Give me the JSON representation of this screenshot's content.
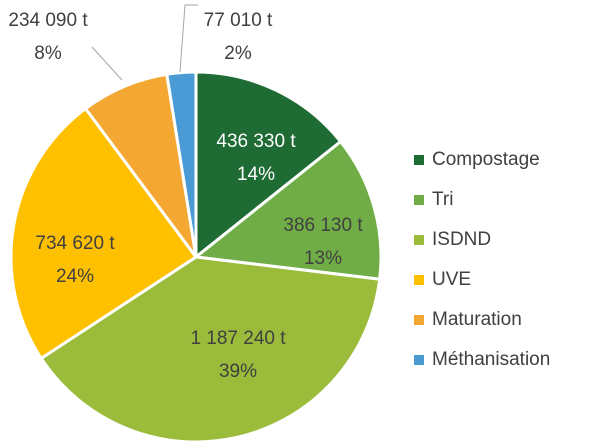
{
  "chart_data": {
    "type": "pie",
    "categories": [
      "Compostage",
      "Tri",
      "ISDND",
      "UVE",
      "Maturation",
      "Méthanisation"
    ],
    "values": [
      436330,
      386130,
      1187240,
      734620,
      234090,
      77010
    ],
    "value_labels": [
      "436 330 t",
      "386 130 t",
      "1 187 240 t",
      "734 620 t",
      "234 090 t",
      "77 010 t"
    ],
    "percent_labels": [
      "14%",
      "13%",
      "39%",
      "24%",
      "8%",
      "2%"
    ],
    "colors": [
      "#1e6b34",
      "#70ad47",
      "#9bbb3b",
      "#ffc000",
      "#f4a732",
      "#4a9bd5"
    ],
    "legend": "right"
  }
}
